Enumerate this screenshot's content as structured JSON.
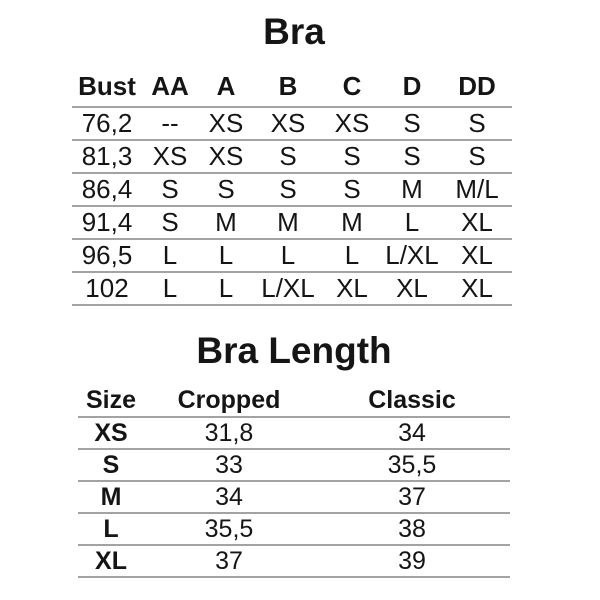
{
  "page": {
    "background": "#ffffff",
    "text_color": "#151515",
    "line_color": "#a3a3a3"
  },
  "chart_data": [
    {
      "type": "table",
      "title": "Bra",
      "columns": [
        "Bust",
        "AA",
        "A",
        "B",
        "C",
        "D",
        "DD"
      ],
      "rows": [
        [
          "76,2",
          "--",
          "XS",
          "XS",
          "XS",
          "S",
          "S"
        ],
        [
          "81,3",
          "XS",
          "XS",
          "S",
          "S",
          "S",
          "S"
        ],
        [
          "86,4",
          "S",
          "S",
          "S",
          "S",
          "M",
          "M/L"
        ],
        [
          "91,4",
          "S",
          "M",
          "M",
          "M",
          "L",
          "XL"
        ],
        [
          "96,5",
          "L",
          "L",
          "L",
          "L",
          "L/XL",
          "XL"
        ],
        [
          "102",
          "L",
          "L",
          "L/XL",
          "XL",
          "XL",
          "XL"
        ]
      ]
    },
    {
      "type": "table",
      "title": "Bra Length",
      "columns": [
        "Size",
        "Cropped",
        "Classic"
      ],
      "rows": [
        [
          "XS",
          "31,8",
          "34"
        ],
        [
          "S",
          "33",
          "35,5"
        ],
        [
          "M",
          "34",
          "37"
        ],
        [
          "L",
          "35,5",
          "38"
        ],
        [
          "XL",
          "37",
          "39"
        ]
      ]
    }
  ]
}
